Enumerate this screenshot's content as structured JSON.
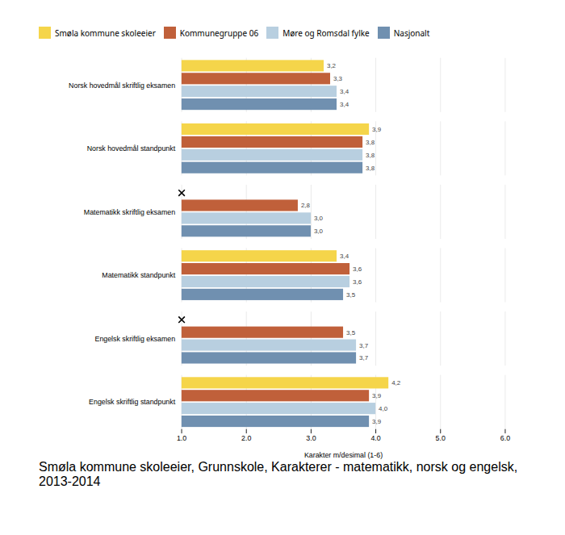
{
  "chart_data": {
    "type": "bar",
    "orientation": "horizontal",
    "categories": [
      "Norsk hovedmål skriftlig eksamen",
      "Norsk hovedmål standpunkt",
      "Matematikk skriftlig eksamen",
      "Matematikk standpunkt",
      "Engelsk skriftlig eksamen",
      "Engelsk skriftlig standpunkt"
    ],
    "series": [
      {
        "name": "Smøla kommune skoleeier",
        "color": "#f5d54a",
        "values": [
          3.2,
          3.9,
          null,
          3.4,
          null,
          4.2
        ],
        "value_labels": [
          "3,2",
          "3,9",
          null,
          "3,4",
          null,
          "4,2"
        ]
      },
      {
        "name": "Kommunegruppe 06",
        "color": "#c0603a",
        "values": [
          3.3,
          3.8,
          2.8,
          3.6,
          3.5,
          3.9
        ],
        "value_labels": [
          "3,3",
          "3,8",
          "2,8",
          "3,6",
          "3,5",
          "3,9"
        ]
      },
      {
        "name": "Møre og Romsdal fylke",
        "color": "#b8cfe0",
        "values": [
          3.4,
          3.8,
          3.0,
          3.6,
          3.7,
          4.0
        ],
        "value_labels": [
          "3,4",
          "3,8",
          "3,0",
          "3,6",
          "3,7",
          "4,0"
        ]
      },
      {
        "name": "Nasjonalt",
        "color": "#7090b0",
        "values": [
          3.4,
          3.8,
          3.0,
          3.5,
          3.7,
          3.9
        ],
        "value_labels": [
          "3,4",
          "3,8",
          "3,0",
          "3,5",
          "3,7",
          "3,9"
        ]
      }
    ],
    "xlabel": "Karakter m/desimal (1-6)",
    "xlim": [
      1,
      6
    ],
    "xticks": [
      1,
      2,
      3,
      4,
      5,
      6
    ],
    "grid": true,
    "data_labels": true,
    "legend": "top",
    "marker": "x",
    "caption": "Smøla kommune skoleeier, Grunnskole, Karakterer - matematikk, norsk og engelsk, 2013-2014"
  }
}
